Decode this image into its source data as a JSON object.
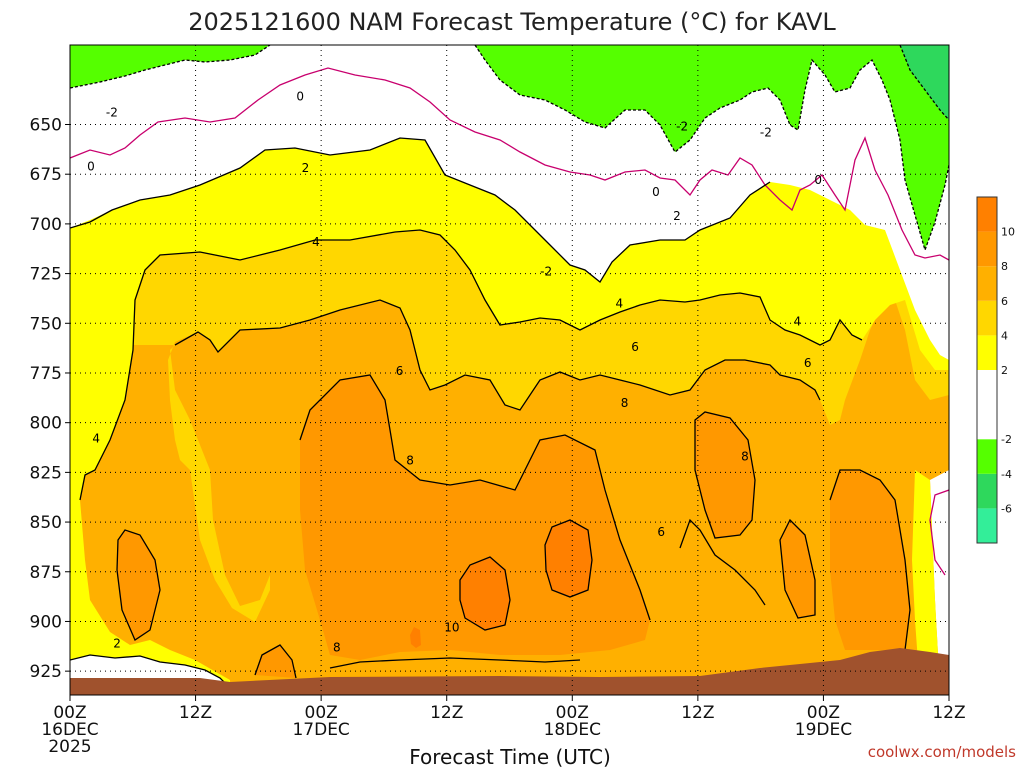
{
  "chart_data": {
    "type": "heatmap",
    "title": "2025121600 NAM Forecast Temperature (°C) for KAVL",
    "xlabel": "Forecast Time (UTC)",
    "ylabel": "",
    "credit": "coolwx.com/models",
    "x_range_hours": [
      0,
      84
    ],
    "y_range_hpa": [
      610,
      937
    ],
    "y_scale": "linear-inverted",
    "x_ticks": [
      {
        "hour": 0,
        "lines": [
          "00Z",
          "16DEC",
          "2025"
        ]
      },
      {
        "hour": 12,
        "lines": [
          "12Z"
        ]
      },
      {
        "hour": 24,
        "lines": [
          "00Z",
          "17DEC"
        ]
      },
      {
        "hour": 36,
        "lines": [
          "12Z"
        ]
      },
      {
        "hour": 48,
        "lines": [
          "00Z",
          "18DEC"
        ]
      },
      {
        "hour": 60,
        "lines": [
          "12Z"
        ]
      },
      {
        "hour": 72,
        "lines": [
          "00Z",
          "19DEC"
        ]
      },
      {
        "hour": 84,
        "lines": [
          "12Z"
        ]
      }
    ],
    "y_ticks": [
      650,
      675,
      700,
      725,
      750,
      775,
      800,
      825,
      850,
      875,
      900,
      925
    ],
    "grid": true,
    "colorbar": {
      "placement": "right",
      "levels": [
        {
          "from": -8,
          "to": -6,
          "color": "#33ee99",
          "label": "-6"
        },
        {
          "from": -6,
          "to": -4,
          "color": "#2ed85c",
          "label": "-4"
        },
        {
          "from": -4,
          "to": -2,
          "color": "#55ff00",
          "label": "-2"
        },
        {
          "from": -2,
          "to": 0,
          "color": "#ffffff",
          "label": ""
        },
        {
          "from": 0,
          "to": 2,
          "color": "#ffffff",
          "label": "2"
        },
        {
          "from": 2,
          "to": 4,
          "color": "#ffff00",
          "label": "4"
        },
        {
          "from": 4,
          "to": 6,
          "color": "#ffd700",
          "label": "6"
        },
        {
          "from": 6,
          "to": 8,
          "color": "#ffb000",
          "label": "8"
        },
        {
          "from": 8,
          "to": 10,
          "color": "#ff9800",
          "label": "10"
        },
        {
          "from": 10,
          "to": 12,
          "color": "#ff8000",
          "label": ""
        }
      ],
      "right_labels": [
        "10",
        "8",
        "6",
        "4",
        "2",
        "-2",
        "-4",
        "-6"
      ]
    },
    "colors": {
      "ground": "#a0522d",
      "freezing_contour": "#c8006e",
      "contour": "#000000"
    },
    "contour_labels": [
      {
        "text": "-2",
        "hour": 4.0,
        "hpa": 644
      },
      {
        "text": "0",
        "hour": 22.0,
        "hpa": 636
      },
      {
        "text": "-2",
        "hour": 58.5,
        "hpa": 651
      },
      {
        "text": "-2",
        "hour": 66.5,
        "hpa": 654
      },
      {
        "text": "0",
        "hour": 2.0,
        "hpa": 671
      },
      {
        "text": "2",
        "hour": 22.5,
        "hpa": 672
      },
      {
        "text": "0",
        "hour": 56.0,
        "hpa": 684
      },
      {
        "text": "0",
        "hour": 71.5,
        "hpa": 678
      },
      {
        "text": "2",
        "hour": 58.0,
        "hpa": 696
      },
      {
        "text": "4",
        "hour": 23.5,
        "hpa": 709
      },
      {
        "text": "-2",
        "hour": 45.5,
        "hpa": 724
      },
      {
        "text": "4",
        "hour": 52.5,
        "hpa": 740
      },
      {
        "text": "4",
        "hour": 69.5,
        "hpa": 749
      },
      {
        "text": "6",
        "hour": 54.0,
        "hpa": 762
      },
      {
        "text": "6",
        "hour": 70.5,
        "hpa": 770
      },
      {
        "text": "6",
        "hour": 31.5,
        "hpa": 774
      },
      {
        "text": "8",
        "hour": 53.0,
        "hpa": 790
      },
      {
        "text": "4",
        "hour": 2.5,
        "hpa": 808
      },
      {
        "text": "8",
        "hour": 32.5,
        "hpa": 819
      },
      {
        "text": "8",
        "hour": 64.5,
        "hpa": 817
      },
      {
        "text": "6",
        "hour": 56.5,
        "hpa": 855
      },
      {
        "text": "10",
        "hour": 36.5,
        "hpa": 903
      },
      {
        "text": "2",
        "hour": 4.5,
        "hpa": 911
      },
      {
        "text": "8",
        "hour": 25.5,
        "hpa": 913
      }
    ],
    "temperature_regions_description_free": true,
    "fields": [
      {
        "level_C": "below_-2",
        "color": "#55ff00"
      },
      {
        "level_C": "0",
        "color": "#ffffff"
      },
      {
        "level_C": "2",
        "color": "#ffff00"
      },
      {
        "level_C": "4",
        "color": "#ffd700"
      },
      {
        "level_C": "6",
        "color": "#ffb000"
      },
      {
        "level_C": "8",
        "color": "#ff9800"
      },
      {
        "level_C": "10",
        "color": "#ff8000"
      }
    ]
  }
}
